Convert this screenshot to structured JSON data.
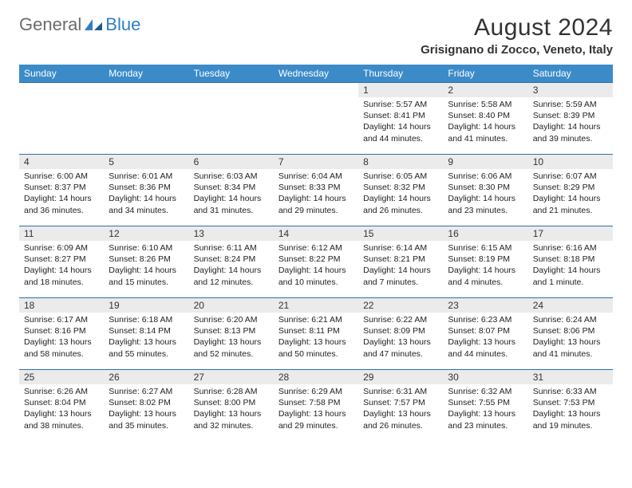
{
  "logo": {
    "gray": "General",
    "blue": "Blue"
  },
  "title": "August 2024",
  "location": "Grisignano di Zocco, Veneto, Italy",
  "weekday_bg": "#3b8bc9",
  "daynum_bg": "#ebebeb",
  "border_color": "#2f6fa6",
  "weekdays": [
    "Sunday",
    "Monday",
    "Tuesday",
    "Wednesday",
    "Thursday",
    "Friday",
    "Saturday"
  ],
  "weeks": [
    [
      null,
      null,
      null,
      null,
      {
        "n": "1",
        "sr": "Sunrise: 5:57 AM",
        "ss": "Sunset: 8:41 PM",
        "dl": "Daylight: 14 hours and 44 minutes."
      },
      {
        "n": "2",
        "sr": "Sunrise: 5:58 AM",
        "ss": "Sunset: 8:40 PM",
        "dl": "Daylight: 14 hours and 41 minutes."
      },
      {
        "n": "3",
        "sr": "Sunrise: 5:59 AM",
        "ss": "Sunset: 8:39 PM",
        "dl": "Daylight: 14 hours and 39 minutes."
      }
    ],
    [
      {
        "n": "4",
        "sr": "Sunrise: 6:00 AM",
        "ss": "Sunset: 8:37 PM",
        "dl": "Daylight: 14 hours and 36 minutes."
      },
      {
        "n": "5",
        "sr": "Sunrise: 6:01 AM",
        "ss": "Sunset: 8:36 PM",
        "dl": "Daylight: 14 hours and 34 minutes."
      },
      {
        "n": "6",
        "sr": "Sunrise: 6:03 AM",
        "ss": "Sunset: 8:34 PM",
        "dl": "Daylight: 14 hours and 31 minutes."
      },
      {
        "n": "7",
        "sr": "Sunrise: 6:04 AM",
        "ss": "Sunset: 8:33 PM",
        "dl": "Daylight: 14 hours and 29 minutes."
      },
      {
        "n": "8",
        "sr": "Sunrise: 6:05 AM",
        "ss": "Sunset: 8:32 PM",
        "dl": "Daylight: 14 hours and 26 minutes."
      },
      {
        "n": "9",
        "sr": "Sunrise: 6:06 AM",
        "ss": "Sunset: 8:30 PM",
        "dl": "Daylight: 14 hours and 23 minutes."
      },
      {
        "n": "10",
        "sr": "Sunrise: 6:07 AM",
        "ss": "Sunset: 8:29 PM",
        "dl": "Daylight: 14 hours and 21 minutes."
      }
    ],
    [
      {
        "n": "11",
        "sr": "Sunrise: 6:09 AM",
        "ss": "Sunset: 8:27 PM",
        "dl": "Daylight: 14 hours and 18 minutes."
      },
      {
        "n": "12",
        "sr": "Sunrise: 6:10 AM",
        "ss": "Sunset: 8:26 PM",
        "dl": "Daylight: 14 hours and 15 minutes."
      },
      {
        "n": "13",
        "sr": "Sunrise: 6:11 AM",
        "ss": "Sunset: 8:24 PM",
        "dl": "Daylight: 14 hours and 12 minutes."
      },
      {
        "n": "14",
        "sr": "Sunrise: 6:12 AM",
        "ss": "Sunset: 8:22 PM",
        "dl": "Daylight: 14 hours and 10 minutes."
      },
      {
        "n": "15",
        "sr": "Sunrise: 6:14 AM",
        "ss": "Sunset: 8:21 PM",
        "dl": "Daylight: 14 hours and 7 minutes."
      },
      {
        "n": "16",
        "sr": "Sunrise: 6:15 AM",
        "ss": "Sunset: 8:19 PM",
        "dl": "Daylight: 14 hours and 4 minutes."
      },
      {
        "n": "17",
        "sr": "Sunrise: 6:16 AM",
        "ss": "Sunset: 8:18 PM",
        "dl": "Daylight: 14 hours and 1 minute."
      }
    ],
    [
      {
        "n": "18",
        "sr": "Sunrise: 6:17 AM",
        "ss": "Sunset: 8:16 PM",
        "dl": "Daylight: 13 hours and 58 minutes."
      },
      {
        "n": "19",
        "sr": "Sunrise: 6:18 AM",
        "ss": "Sunset: 8:14 PM",
        "dl": "Daylight: 13 hours and 55 minutes."
      },
      {
        "n": "20",
        "sr": "Sunrise: 6:20 AM",
        "ss": "Sunset: 8:13 PM",
        "dl": "Daylight: 13 hours and 52 minutes."
      },
      {
        "n": "21",
        "sr": "Sunrise: 6:21 AM",
        "ss": "Sunset: 8:11 PM",
        "dl": "Daylight: 13 hours and 50 minutes."
      },
      {
        "n": "22",
        "sr": "Sunrise: 6:22 AM",
        "ss": "Sunset: 8:09 PM",
        "dl": "Daylight: 13 hours and 47 minutes."
      },
      {
        "n": "23",
        "sr": "Sunrise: 6:23 AM",
        "ss": "Sunset: 8:07 PM",
        "dl": "Daylight: 13 hours and 44 minutes."
      },
      {
        "n": "24",
        "sr": "Sunrise: 6:24 AM",
        "ss": "Sunset: 8:06 PM",
        "dl": "Daylight: 13 hours and 41 minutes."
      }
    ],
    [
      {
        "n": "25",
        "sr": "Sunrise: 6:26 AM",
        "ss": "Sunset: 8:04 PM",
        "dl": "Daylight: 13 hours and 38 minutes."
      },
      {
        "n": "26",
        "sr": "Sunrise: 6:27 AM",
        "ss": "Sunset: 8:02 PM",
        "dl": "Daylight: 13 hours and 35 minutes."
      },
      {
        "n": "27",
        "sr": "Sunrise: 6:28 AM",
        "ss": "Sunset: 8:00 PM",
        "dl": "Daylight: 13 hours and 32 minutes."
      },
      {
        "n": "28",
        "sr": "Sunrise: 6:29 AM",
        "ss": "Sunset: 7:58 PM",
        "dl": "Daylight: 13 hours and 29 minutes."
      },
      {
        "n": "29",
        "sr": "Sunrise: 6:31 AM",
        "ss": "Sunset: 7:57 PM",
        "dl": "Daylight: 13 hours and 26 minutes."
      },
      {
        "n": "30",
        "sr": "Sunrise: 6:32 AM",
        "ss": "Sunset: 7:55 PM",
        "dl": "Daylight: 13 hours and 23 minutes."
      },
      {
        "n": "31",
        "sr": "Sunrise: 6:33 AM",
        "ss": "Sunset: 7:53 PM",
        "dl": "Daylight: 13 hours and 19 minutes."
      }
    ]
  ]
}
